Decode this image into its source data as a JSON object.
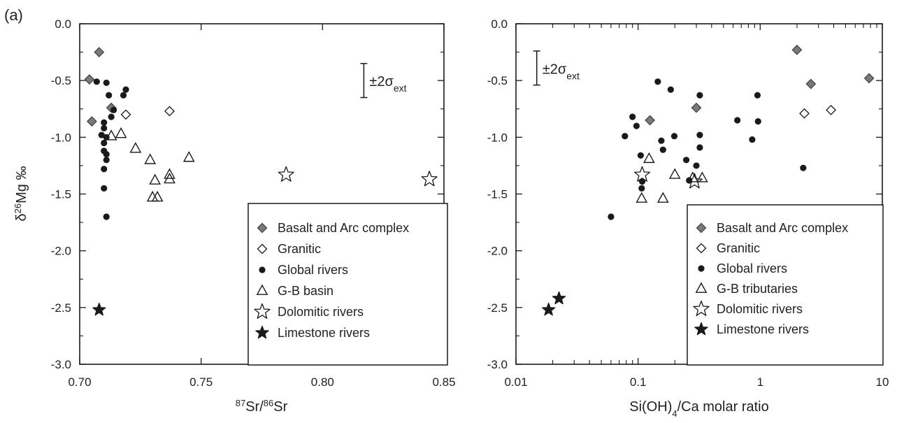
{
  "panel_label": "(a)",
  "colors": {
    "ink": "#1a1a1a",
    "filled_diamond": "#7a7a7a",
    "background": "#ffffff"
  },
  "chart_data": [
    {
      "type": "scatter",
      "xscale": "linear",
      "xlabel_parts": [
        [
          "87",
          "sup"
        ],
        [
          "Sr/",
          "normal"
        ],
        [
          "86",
          "sup"
        ],
        [
          "Sr",
          "normal"
        ]
      ],
      "ylabel_parts": [
        [
          "δ",
          "normal"
        ],
        [
          "26",
          "sup"
        ],
        [
          "Mg ‰",
          "normal"
        ]
      ],
      "xlim": [
        0.7,
        0.85
      ],
      "ylim": [
        -3.0,
        0.0
      ],
      "xticks": [
        0.7,
        0.75,
        0.8,
        0.85
      ],
      "xtick_labels": [
        "0.70",
        "0.75",
        "0.80",
        "0.85"
      ],
      "yticks": [
        0.0,
        -0.5,
        -1.0,
        -1.5,
        -2.0,
        -2.5,
        -3.0
      ],
      "ytick_labels": [
        "0.0",
        "-0.5",
        "-1.0",
        "-1.5",
        "-2.0",
        "-2.5",
        "-3.0"
      ],
      "errorbar_label": "±2σ",
      "errorbar_sub": "ext",
      "errorbar": {
        "x": 0.817,
        "y": -0.5,
        "half_range": 0.15
      },
      "legend_placement": "bottom-right",
      "series": [
        {
          "name": "Basalt and Arc complex",
          "marker": "diamond-filled",
          "points": [
            [
              0.708,
              -0.25
            ],
            [
              0.704,
              -0.49
            ],
            [
              0.705,
              -0.86
            ],
            [
              0.713,
              -0.74
            ]
          ]
        },
        {
          "name": "Granitic",
          "marker": "diamond-open",
          "points": [
            [
              0.719,
              -0.8
            ],
            [
              0.737,
              -0.77
            ]
          ]
        },
        {
          "name": "Global rivers",
          "marker": "circle",
          "points": [
            [
              0.707,
              -0.51
            ],
            [
              0.711,
              -0.52
            ],
            [
              0.712,
              -0.63
            ],
            [
              0.718,
              -0.63
            ],
            [
              0.719,
              -0.58
            ],
            [
              0.714,
              -0.76
            ],
            [
              0.713,
              -0.82
            ],
            [
              0.71,
              -0.87
            ],
            [
              0.71,
              -0.92
            ],
            [
              0.709,
              -0.98
            ],
            [
              0.711,
              -1.0
            ],
            [
              0.71,
              -1.05
            ],
            [
              0.71,
              -1.12
            ],
            [
              0.711,
              -1.15
            ],
            [
              0.711,
              -1.2
            ],
            [
              0.71,
              -1.28
            ],
            [
              0.71,
              -1.45
            ],
            [
              0.711,
              -1.7
            ]
          ]
        },
        {
          "name": "G-B basin",
          "marker": "triangle-open",
          "points": [
            [
              0.713,
              -0.99
            ],
            [
              0.717,
              -0.97
            ],
            [
              0.723,
              -1.1
            ],
            [
              0.729,
              -1.2
            ],
            [
              0.745,
              -1.18
            ],
            [
              0.731,
              -1.38
            ],
            [
              0.737,
              -1.33
            ],
            [
              0.737,
              -1.37
            ],
            [
              0.73,
              -1.53
            ],
            [
              0.732,
              -1.53
            ]
          ]
        },
        {
          "name": "Dolomitic rivers",
          "marker": "star-open",
          "points": [
            [
              0.785,
              -1.33
            ],
            [
              0.844,
              -1.37
            ]
          ]
        },
        {
          "name": "Limestone rivers",
          "marker": "star-filled",
          "points": [
            [
              0.708,
              -2.52
            ]
          ]
        }
      ]
    },
    {
      "type": "scatter",
      "xscale": "log",
      "xlabel_parts": [
        [
          "Si(OH)",
          "normal"
        ],
        [
          "4",
          "sub"
        ],
        [
          "/Ca molar ratio",
          "normal"
        ]
      ],
      "ylabel_parts": [],
      "xlim": [
        0.01,
        10
      ],
      "ylim": [
        -3.0,
        0.0
      ],
      "xticks": [
        0.01,
        0.1,
        1,
        10
      ],
      "xtick_labels": [
        "0.01",
        "0.1",
        "1",
        "10"
      ],
      "yticks": [
        0.0,
        -0.5,
        -1.0,
        -1.5,
        -2.0,
        -2.5,
        -3.0
      ],
      "ytick_labels": [
        "0.0",
        "-0.5",
        "-1.0",
        "-1.5",
        "-2.0",
        "-2.5",
        "-3.0"
      ],
      "errorbar_label": "±2σ",
      "errorbar_sub": "ext",
      "errorbar": {
        "x": 0.0148,
        "y": -0.39,
        "half_range": 0.15
      },
      "legend_placement": "bottom-right",
      "series": [
        {
          "name": "Basalt and Arc complex",
          "marker": "diamond-filled",
          "points": [
            [
              0.125,
              -0.85
            ],
            [
              0.3,
              -0.74
            ],
            [
              2.0,
              -0.23
            ],
            [
              2.6,
              -0.53
            ],
            [
              7.8,
              -0.48
            ]
          ]
        },
        {
          "name": "Granitic",
          "marker": "diamond-open",
          "points": [
            [
              2.3,
              -0.79
            ],
            [
              3.8,
              -0.76
            ]
          ]
        },
        {
          "name": "Global rivers",
          "marker": "circle",
          "points": [
            [
              0.06,
              -1.7
            ],
            [
              0.078,
              -0.99
            ],
            [
              0.09,
              -0.82
            ],
            [
              0.097,
              -0.9
            ],
            [
              0.105,
              -1.16
            ],
            [
              0.107,
              -1.45
            ],
            [
              0.108,
              -1.39
            ],
            [
              0.145,
              -0.51
            ],
            [
              0.155,
              -1.03
            ],
            [
              0.16,
              -1.11
            ],
            [
              0.185,
              -0.58
            ],
            [
              0.198,
              -0.99
            ],
            [
              0.248,
              -1.2
            ],
            [
              0.262,
              -1.38
            ],
            [
              0.3,
              -1.25
            ],
            [
              0.32,
              -0.63
            ],
            [
              0.32,
              -0.98
            ],
            [
              0.32,
              -1.09
            ],
            [
              0.65,
              -0.85
            ],
            [
              0.86,
              -1.02
            ],
            [
              0.95,
              -0.63
            ],
            [
              0.96,
              -0.86
            ],
            [
              2.25,
              -1.27
            ]
          ]
        },
        {
          "name": "G-B tributaries",
          "marker": "triangle-open",
          "points": [
            [
              0.107,
              -1.54
            ],
            [
              0.123,
              -1.19
            ],
            [
              0.16,
              -1.54
            ],
            [
              0.2,
              -1.33
            ],
            [
              0.28,
              -1.36
            ],
            [
              0.335,
              -1.36
            ]
          ]
        },
        {
          "name": "Dolomitic rivers",
          "marker": "star-open",
          "points": [
            [
              0.108,
              -1.33
            ],
            [
              0.29,
              -1.39
            ]
          ]
        },
        {
          "name": "Limestone rivers",
          "marker": "star-filled",
          "points": [
            [
              0.0185,
              -2.52
            ],
            [
              0.0225,
              -2.42
            ]
          ]
        }
      ]
    }
  ]
}
